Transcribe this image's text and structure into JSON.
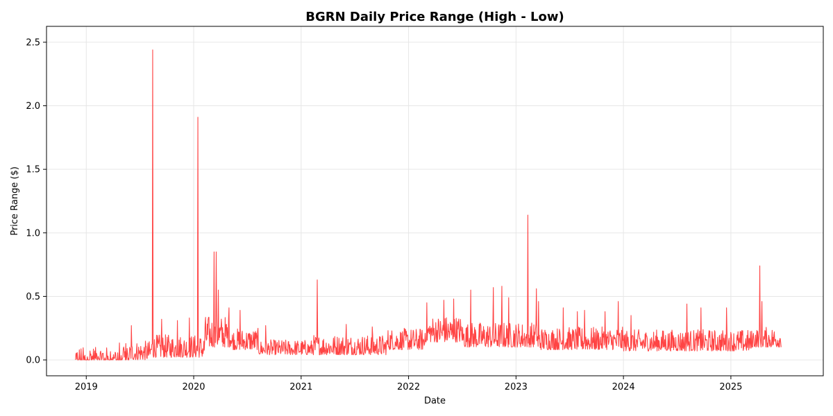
{
  "chart_data": {
    "type": "line",
    "title": "BGRN Daily Price Range (High - Low)",
    "xlabel": "Date",
    "ylabel": "Price Range ($)",
    "xlim": [
      2018.63,
      2025.86
    ],
    "ylim": [
      -0.125,
      2.625
    ],
    "grid": true,
    "x_ticks": [
      2019,
      2020,
      2021,
      2022,
      2023,
      2024,
      2025
    ],
    "x_tick_labels": [
      "2019",
      "2020",
      "2021",
      "2022",
      "2023",
      "2024",
      "2025"
    ],
    "y_ticks": [
      0.0,
      0.5,
      1.0,
      1.5,
      2.0,
      2.5
    ],
    "y_tick_labels": [
      "0.0",
      "0.5",
      "1.0",
      "1.5",
      "2.0",
      "2.5"
    ],
    "series": [
      {
        "name": "Price Range",
        "color": "#ff4444",
        "x_start": 2018.9,
        "x_end": 2025.47,
        "baseline_segments": [
          {
            "x0": 2018.9,
            "x1": 2019.3,
            "lo": 0.0,
            "hi": 0.1
          },
          {
            "x0": 2019.3,
            "x1": 2019.6,
            "lo": 0.0,
            "hi": 0.15
          },
          {
            "x0": 2019.6,
            "x1": 2020.1,
            "lo": 0.02,
            "hi": 0.2
          },
          {
            "x0": 2020.1,
            "x1": 2020.35,
            "lo": 0.1,
            "hi": 0.35
          },
          {
            "x0": 2020.35,
            "x1": 2020.6,
            "lo": 0.08,
            "hi": 0.25
          },
          {
            "x0": 2020.6,
            "x1": 2021.1,
            "lo": 0.04,
            "hi": 0.16
          },
          {
            "x0": 2021.1,
            "x1": 2021.8,
            "lo": 0.04,
            "hi": 0.2
          },
          {
            "x0": 2021.8,
            "x1": 2022.15,
            "lo": 0.08,
            "hi": 0.25
          },
          {
            "x0": 2022.15,
            "x1": 2022.5,
            "lo": 0.14,
            "hi": 0.35
          },
          {
            "x0": 2022.5,
            "x1": 2023.2,
            "lo": 0.1,
            "hi": 0.3
          },
          {
            "x0": 2023.2,
            "x1": 2024.0,
            "lo": 0.08,
            "hi": 0.26
          },
          {
            "x0": 2024.0,
            "x1": 2025.2,
            "lo": 0.07,
            "hi": 0.24
          },
          {
            "x0": 2025.2,
            "x1": 2025.47,
            "lo": 0.1,
            "hi": 0.26
          }
        ],
        "spikes": [
          {
            "x": 2019.42,
            "y": 0.27
          },
          {
            "x": 2019.62,
            "y": 2.44
          },
          {
            "x": 2019.7,
            "y": 0.32
          },
          {
            "x": 2019.85,
            "y": 0.31
          },
          {
            "x": 2019.96,
            "y": 0.33
          },
          {
            "x": 2020.04,
            "y": 1.91
          },
          {
            "x": 2020.19,
            "y": 0.85
          },
          {
            "x": 2020.21,
            "y": 0.85
          },
          {
            "x": 2020.23,
            "y": 0.55
          },
          {
            "x": 2020.33,
            "y": 0.41
          },
          {
            "x": 2020.43,
            "y": 0.39
          },
          {
            "x": 2020.67,
            "y": 0.27
          },
          {
            "x": 2021.15,
            "y": 0.63
          },
          {
            "x": 2021.42,
            "y": 0.28
          },
          {
            "x": 2021.66,
            "y": 0.26
          },
          {
            "x": 2022.17,
            "y": 0.45
          },
          {
            "x": 2022.33,
            "y": 0.47
          },
          {
            "x": 2022.42,
            "y": 0.48
          },
          {
            "x": 2022.58,
            "y": 0.55
          },
          {
            "x": 2022.79,
            "y": 0.57
          },
          {
            "x": 2022.87,
            "y": 0.58
          },
          {
            "x": 2022.93,
            "y": 0.49
          },
          {
            "x": 2023.11,
            "y": 1.14
          },
          {
            "x": 2023.19,
            "y": 0.56
          },
          {
            "x": 2023.21,
            "y": 0.46
          },
          {
            "x": 2023.44,
            "y": 0.41
          },
          {
            "x": 2023.57,
            "y": 0.38
          },
          {
            "x": 2023.64,
            "y": 0.39
          },
          {
            "x": 2023.83,
            "y": 0.38
          },
          {
            "x": 2023.95,
            "y": 0.46
          },
          {
            "x": 2024.07,
            "y": 0.35
          },
          {
            "x": 2024.59,
            "y": 0.44
          },
          {
            "x": 2024.72,
            "y": 0.41
          },
          {
            "x": 2024.96,
            "y": 0.41
          },
          {
            "x": 2025.27,
            "y": 0.74
          },
          {
            "x": 2025.29,
            "y": 0.46
          }
        ]
      }
    ]
  }
}
